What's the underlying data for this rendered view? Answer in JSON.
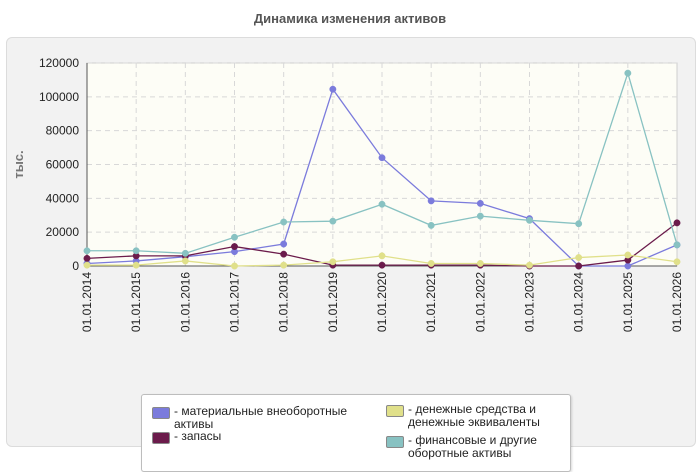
{
  "title": "Динамика изменения активов",
  "chart_data": {
    "type": "line",
    "title": "Динамика изменения активов",
    "ylabel": "тыс.",
    "xlabel": "",
    "ylim": [
      0,
      120000
    ],
    "yticks": [
      0,
      20000,
      40000,
      60000,
      80000,
      100000,
      120000
    ],
    "grid": true,
    "legend_position": "bottom",
    "categories": [
      "01.01.2014",
      "01.01.2015",
      "01.01.2016",
      "01.01.2017",
      "01.01.2018",
      "01.01.2019",
      "01.01.2020",
      "01.01.2021",
      "01.01.2022",
      "01.01.2023",
      "01.01.2024",
      "01.01.2025",
      "01.01.2026"
    ],
    "series": [
      {
        "name": "материальные внеоборотные активы",
        "color": "#7b7bdc",
        "values": [
          1500,
          3000,
          5500,
          8500,
          13000,
          104500,
          64000,
          38500,
          37000,
          28000,
          0,
          0,
          12500
        ]
      },
      {
        "name": "запасы",
        "color": "#6b1b4b",
        "values": [
          4500,
          6000,
          6000,
          11500,
          7000,
          500,
          500,
          500,
          500,
          0,
          0,
          3500,
          25500
        ]
      },
      {
        "name": "денежные средства и денежные эквиваленты",
        "color": "#e0e08a",
        "values": [
          500,
          500,
          3000,
          0,
          500,
          2500,
          6000,
          1500,
          1500,
          500,
          5000,
          6500,
          2500
        ]
      },
      {
        "name": "финансовые и другие оборотные активы",
        "color": "#88c2c2",
        "values": [
          9000,
          9000,
          7500,
          17000,
          26000,
          26500,
          36500,
          24000,
          29500,
          27000,
          25000,
          114000,
          12500
        ]
      }
    ]
  },
  "legend": {
    "items": [
      {
        "label": "- материальные внеоборотные активы",
        "color": "#7b7bdc"
      },
      {
        "label": "- запасы",
        "color": "#6b1b4b"
      },
      {
        "label": "- денежные средства и денежные эквиваленты",
        "color": "#e0e08a"
      },
      {
        "label": "- финансовые и другие оборотные активы",
        "color": "#88c2c2"
      }
    ]
  }
}
